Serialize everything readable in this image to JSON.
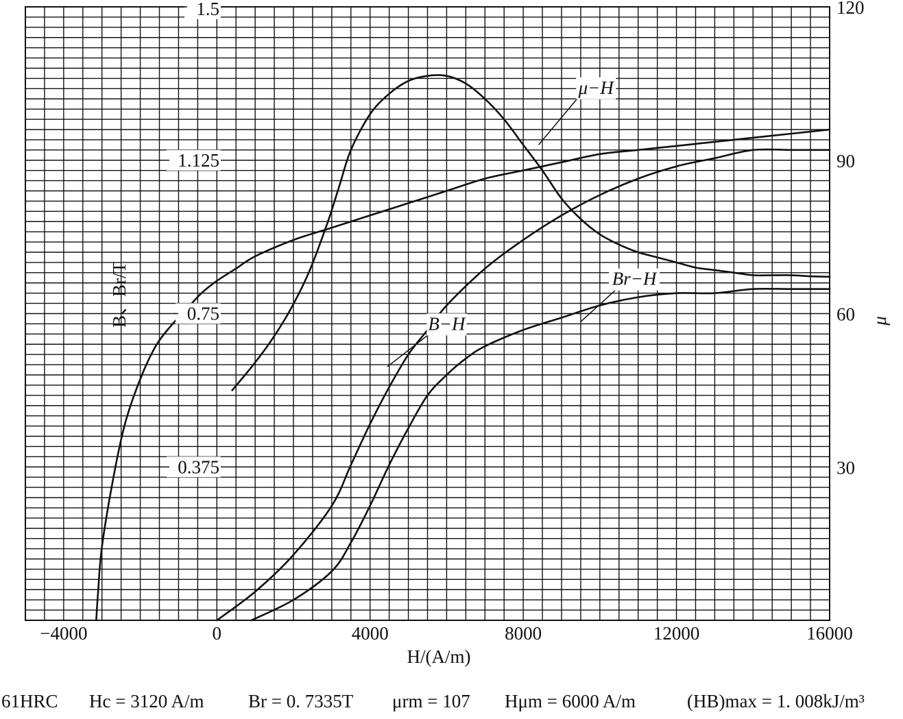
{
  "chart_data": {
    "type": "line",
    "xlabel": "H/(A/m)",
    "ylabel_left": "B、Br/T",
    "ylabel_right": "μ",
    "x_ticks": [
      "−4000",
      "0",
      "4000",
      "8000",
      "12000",
      "16000"
    ],
    "y_left_ticks": [
      "0.375",
      "0.75",
      "1.125",
      "1.5"
    ],
    "y_right_ticks": [
      "30",
      "60",
      "90",
      "120"
    ],
    "xlim": [
      -5000,
      16000
    ],
    "ylim_left": [
      0,
      1.5
    ],
    "ylim_right": [
      0,
      120
    ],
    "grid": true,
    "series": [
      {
        "name": "μ−H",
        "axis": "right",
        "x": [
          400,
          900,
          1400,
          1900,
          2400,
          2900,
          3200,
          3500,
          4000,
          4500,
          5000,
          5500,
          6000,
          6500,
          7000,
          7500,
          8000,
          8500,
          9000,
          9500,
          10000,
          10500,
          11000,
          11500,
          12000,
          12500,
          13000,
          13500,
          14000,
          14500,
          15000,
          15500,
          16000
        ],
        "y": [
          45,
          49.5,
          54.5,
          60.5,
          68,
          78,
          85,
          92,
          99,
          103,
          105.5,
          106.5,
          106.5,
          105,
          102,
          98,
          93,
          88,
          82.5,
          78.5,
          75.5,
          73.5,
          72,
          71,
          70,
          69,
          68.5,
          68,
          67.5,
          67.5,
          67.5,
          67.3,
          67.2
        ]
      },
      {
        "name": "B−H",
        "axis": "left",
        "x": [
          -3150,
          -3100,
          -3000,
          -2700,
          -2400,
          -2000,
          -1600,
          -1200,
          -800,
          -400,
          0,
          500,
          1000,
          2000,
          3000,
          4000,
          5000,
          6000,
          7000,
          8000,
          9000,
          10000,
          11000,
          12000,
          13000,
          14000,
          15000,
          16000
        ],
        "y": [
          0,
          0.07,
          0.18,
          0.35,
          0.48,
          0.59,
          0.67,
          0.72,
          0.76,
          0.8,
          0.83,
          0.86,
          0.89,
          0.93,
          0.96,
          0.99,
          1.02,
          1.05,
          1.08,
          1.1,
          1.12,
          1.14,
          1.15,
          1.16,
          1.17,
          1.18,
          1.19,
          1.2
        ]
      },
      {
        "name": "Br−H",
        "axis": "left",
        "x": [
          0,
          1000,
          2000,
          3000,
          3500,
          4000,
          4500,
          5000,
          5500,
          6000,
          7000,
          8000,
          9000,
          10000,
          11000,
          12000,
          13000,
          14000,
          15000,
          16000
        ],
        "y": [
          0,
          0.07,
          0.16,
          0.28,
          0.38,
          0.48,
          0.57,
          0.65,
          0.71,
          0.77,
          0.86,
          0.93,
          0.99,
          1.04,
          1.08,
          1.11,
          1.13,
          1.15,
          1.15,
          1.15
        ]
      },
      {
        "name": "",
        "axis": "left",
        "x": [
          900,
          2000,
          3000,
          3500,
          4000,
          4500,
          5000,
          5500,
          6000,
          6500,
          7000,
          8000,
          9000,
          10000,
          11000,
          12000,
          13000,
          14000,
          15000,
          16000
        ],
        "y": [
          0,
          0.05,
          0.12,
          0.19,
          0.28,
          0.38,
          0.47,
          0.55,
          0.6,
          0.64,
          0.67,
          0.71,
          0.74,
          0.77,
          0.79,
          0.8,
          0.8,
          0.81,
          0.81,
          0.81
        ]
      }
    ],
    "curve_labels": [
      {
        "text": "μ−H",
        "x": 9900,
        "y_right": 103,
        "tx": 8400,
        "ty_right": 93
      },
      {
        "text": "B−H",
        "x": 6000,
        "y_left": 0.71,
        "tx": 4450,
        "ty_left": 0.62
      },
      {
        "text": "Br−H",
        "x": 10900,
        "y_left": 0.82,
        "tx": 9500,
        "ty_left": 0.73
      }
    ],
    "footer": {
      "hardness": "61HRC",
      "hc": "Hc = 3120 A/m",
      "br": "Br = 0. 7335T",
      "mu": "μrm = 107",
      "hmu": "Hμm = 6000 A/m",
      "hb": "(HB)max = 1. 008kJ/m³"
    }
  }
}
